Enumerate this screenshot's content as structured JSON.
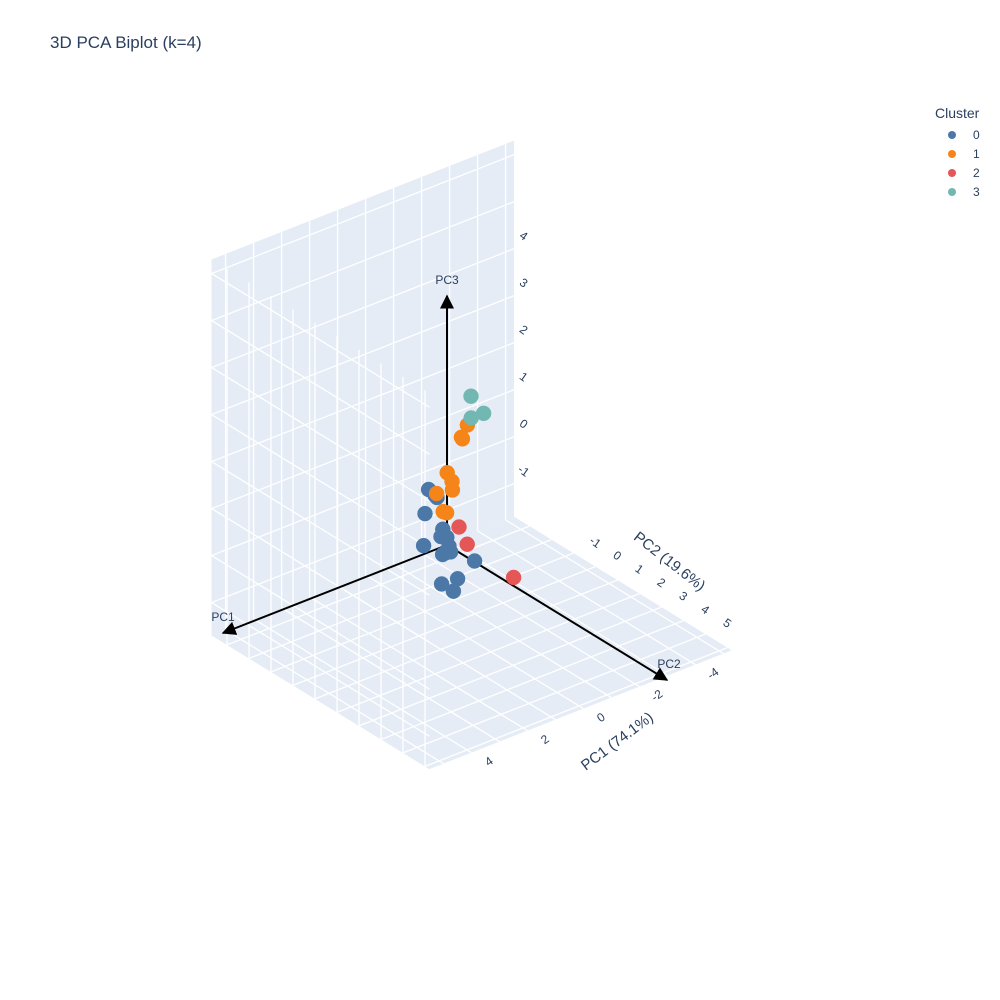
{
  "chart_data": {
    "type": "scatter",
    "title": "3D PCA Biplot (k=4)",
    "legend": {
      "title": "Cluster",
      "placement": "top-right"
    },
    "colors": {
      "0": "#4c78a8",
      "1": "#f58518",
      "2": "#e45756",
      "3": "#72b7b2"
    },
    "axes": {
      "x": {
        "label": "PC1 (74.1%)",
        "ticks": [
          "-4",
          "-2",
          "0",
          "2",
          "4"
        ]
      },
      "y": {
        "label": "PC2 (19.6%)",
        "ticks": [
          "-1",
          "0",
          "1",
          "2",
          "3",
          "4",
          "5"
        ]
      },
      "z": {
        "label": "",
        "ticks": [
          "-1",
          "0",
          "1",
          "2",
          "3",
          "4"
        ]
      }
    },
    "background": "#e5ecf6",
    "grid": true,
    "arrows": [
      {
        "label": "PC1"
      },
      {
        "label": "PC2"
      },
      {
        "label": "PC3"
      }
    ],
    "series": [
      {
        "name": "0",
        "points": [
          {
            "pc1": 2.2,
            "pc2": 1.8,
            "pc3": 1.7
          },
          {
            "pc1": 1.6,
            "pc2": 1.2,
            "pc3": 1.9
          },
          {
            "pc1": 1.5,
            "pc2": 2.0,
            "pc3": 0.9
          },
          {
            "pc1": 2.0,
            "pc2": 2.3,
            "pc3": 0.3
          },
          {
            "pc1": 1.3,
            "pc2": 1.6,
            "pc3": 0.6
          },
          {
            "pc1": 1.7,
            "pc2": 1.1,
            "pc3": 0.7
          },
          {
            "pc1": 1.1,
            "pc2": 1.2,
            "pc3": 0.4
          },
          {
            "pc1": 1.5,
            "pc2": 2.2,
            "pc3": 0.0
          },
          {
            "pc1": 1.0,
            "pc2": 1.0,
            "pc3": 0.7
          },
          {
            "pc1": 0.7,
            "pc2": 0.7,
            "pc3": 0.7
          },
          {
            "pc1": 0.8,
            "pc2": 1.5,
            "pc3": -0.1
          },
          {
            "pc1": 0.5,
            "pc2": 0.8,
            "pc3": 0.2
          },
          {
            "pc1": 0.4,
            "pc2": 0.5,
            "pc3": 0.4
          },
          {
            "pc1": 0.5,
            "pc2": 0.1,
            "pc3": 1.2
          },
          {
            "pc1": -0.2,
            "pc2": 1.0,
            "pc3": -0.1
          },
          {
            "pc1": 0.2,
            "pc2": -0.2,
            "pc3": 1.0
          }
        ]
      },
      {
        "name": "1",
        "points": [
          {
            "pc1": -1.2,
            "pc2": -0.6,
            "pc3": 2.1
          },
          {
            "pc1": -1.1,
            "pc2": -0.7,
            "pc3": 1.8
          },
          {
            "pc1": -0.4,
            "pc2": -0.5,
            "pc3": 1.3
          },
          {
            "pc1": -1.3,
            "pc2": -1.0,
            "pc3": 1.7
          },
          {
            "pc1": -0.9,
            "pc2": -0.9,
            "pc3": 0.7
          },
          {
            "pc1": -1.2,
            "pc2": -1.3,
            "pc3": 0.7
          },
          {
            "pc1": -0.1,
            "pc2": -0.6,
            "pc3": 0.9
          },
          {
            "pc1": -0.3,
            "pc2": -0.4,
            "pc3": 0.5
          },
          {
            "pc1": -0.1,
            "pc2": -0.3,
            "pc3": 0.6
          }
        ]
      },
      {
        "name": "2",
        "points": [
          {
            "pc1": -0.9,
            "pc2": -0.6,
            "pc3": 0.0
          },
          {
            "pc1": -0.8,
            "pc2": -0.1,
            "pc3": -0.2
          },
          {
            "pc1": -2.3,
            "pc2": 0.1,
            "pc3": -1.2
          }
        ]
      },
      {
        "name": "3",
        "points": [
          {
            "pc1": -1.8,
            "pc2": -1.2,
            "pc3": 2.4
          },
          {
            "pc1": -2.2,
            "pc2": -1.7,
            "pc3": 1.7
          },
          {
            "pc1": -2.8,
            "pc2": -1.9,
            "pc3": 1.6
          }
        ]
      }
    ]
  }
}
